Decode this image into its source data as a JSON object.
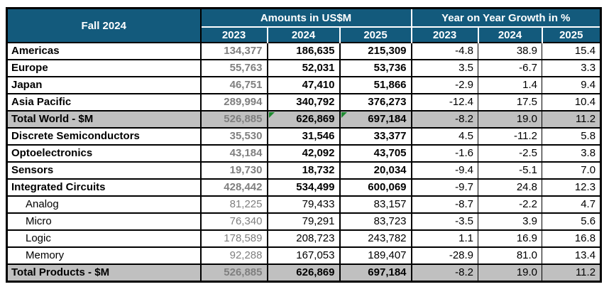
{
  "chart_data": {
    "type": "table",
    "title": "Fall 2024",
    "column_groups": [
      {
        "label": "Amounts in US$M",
        "columns": [
          "2023",
          "2024",
          "2025"
        ]
      },
      {
        "label": "Year on Year Growth in %",
        "columns": [
          "2023",
          "2024",
          "2025"
        ]
      }
    ],
    "rows": [
      {
        "label": "Americas",
        "style": "main",
        "amounts_usd_m": [
          "134,377",
          "186,635",
          "215,309"
        ],
        "yoy_growth_pct": [
          "-4.8",
          "38.9",
          "15.4"
        ],
        "markers": []
      },
      {
        "label": "Europe",
        "style": "main",
        "amounts_usd_m": [
          "55,763",
          "52,031",
          "53,736"
        ],
        "yoy_growth_pct": [
          "3.5",
          "-6.7",
          "3.3"
        ],
        "markers": []
      },
      {
        "label": "Japan",
        "style": "main",
        "amounts_usd_m": [
          "46,751",
          "47,410",
          "51,866"
        ],
        "yoy_growth_pct": [
          "-2.9",
          "1.4",
          "9.4"
        ],
        "markers": []
      },
      {
        "label": "Asia Pacific",
        "style": "main",
        "amounts_usd_m": [
          "289,994",
          "340,792",
          "376,273"
        ],
        "yoy_growth_pct": [
          "-12.4",
          "17.5",
          "10.4"
        ],
        "markers": []
      },
      {
        "label": "Total World - $M",
        "style": "total",
        "amounts_usd_m": [
          "526,885",
          "626,869",
          "697,184"
        ],
        "yoy_growth_pct": [
          "-8.2",
          "19.0",
          "11.2"
        ],
        "markers": [
          1,
          2
        ]
      },
      {
        "label": "Discrete Semiconductors",
        "style": "main",
        "amounts_usd_m": [
          "35,530",
          "31,546",
          "33,377"
        ],
        "yoy_growth_pct": [
          "4.5",
          "-11.2",
          "5.8"
        ],
        "markers": []
      },
      {
        "label": "Optoelectronics",
        "style": "main",
        "amounts_usd_m": [
          "43,184",
          "42,092",
          "43,705"
        ],
        "yoy_growth_pct": [
          "-1.6",
          "-2.5",
          "3.8"
        ],
        "markers": []
      },
      {
        "label": "Sensors",
        "style": "main",
        "amounts_usd_m": [
          "19,730",
          "18,732",
          "20,034"
        ],
        "yoy_growth_pct": [
          "-9.4",
          "-5.1",
          "7.0"
        ],
        "markers": []
      },
      {
        "label": "Integrated Circuits",
        "style": "main",
        "amounts_usd_m": [
          "428,442",
          "534,499",
          "600,069"
        ],
        "yoy_growth_pct": [
          "-9.7",
          "24.8",
          "12.3"
        ],
        "markers": []
      },
      {
        "label": "Analog",
        "style": "sub",
        "amounts_usd_m": [
          "81,225",
          "79,433",
          "83,157"
        ],
        "yoy_growth_pct": [
          "-8.7",
          "-2.2",
          "4.7"
        ],
        "markers": []
      },
      {
        "label": "Micro",
        "style": "sub",
        "amounts_usd_m": [
          "76,340",
          "79,291",
          "83,723"
        ],
        "yoy_growth_pct": [
          "-3.5",
          "3.9",
          "5.6"
        ],
        "markers": []
      },
      {
        "label": "Logic",
        "style": "sub",
        "amounts_usd_m": [
          "178,589",
          "208,723",
          "243,782"
        ],
        "yoy_growth_pct": [
          "1.1",
          "16.9",
          "16.8"
        ],
        "markers": []
      },
      {
        "label": "Memory",
        "style": "sub",
        "amounts_usd_m": [
          "92,288",
          "167,053",
          "189,407"
        ],
        "yoy_growth_pct": [
          "-28.9",
          "81.0",
          "13.4"
        ],
        "markers": []
      },
      {
        "label": "Total Products - $M",
        "style": "total",
        "amounts_usd_m": [
          "526,885",
          "626,869",
          "697,184"
        ],
        "yoy_growth_pct": [
          "-8.2",
          "19.0",
          "11.2"
        ],
        "markers": []
      }
    ],
    "layout": {
      "total_row_background": "gray",
      "first_amount_column_text": "gray",
      "header_style": "teal band with white separators"
    }
  },
  "colors": {
    "header_bg": "#135A7C",
    "header_text": "#FFFFFF",
    "total_row_bg": "#C0C0C0",
    "amount_2023_text": "#7F7F7F",
    "flag_triangle": "#1E8A30",
    "border": "#000000"
  }
}
